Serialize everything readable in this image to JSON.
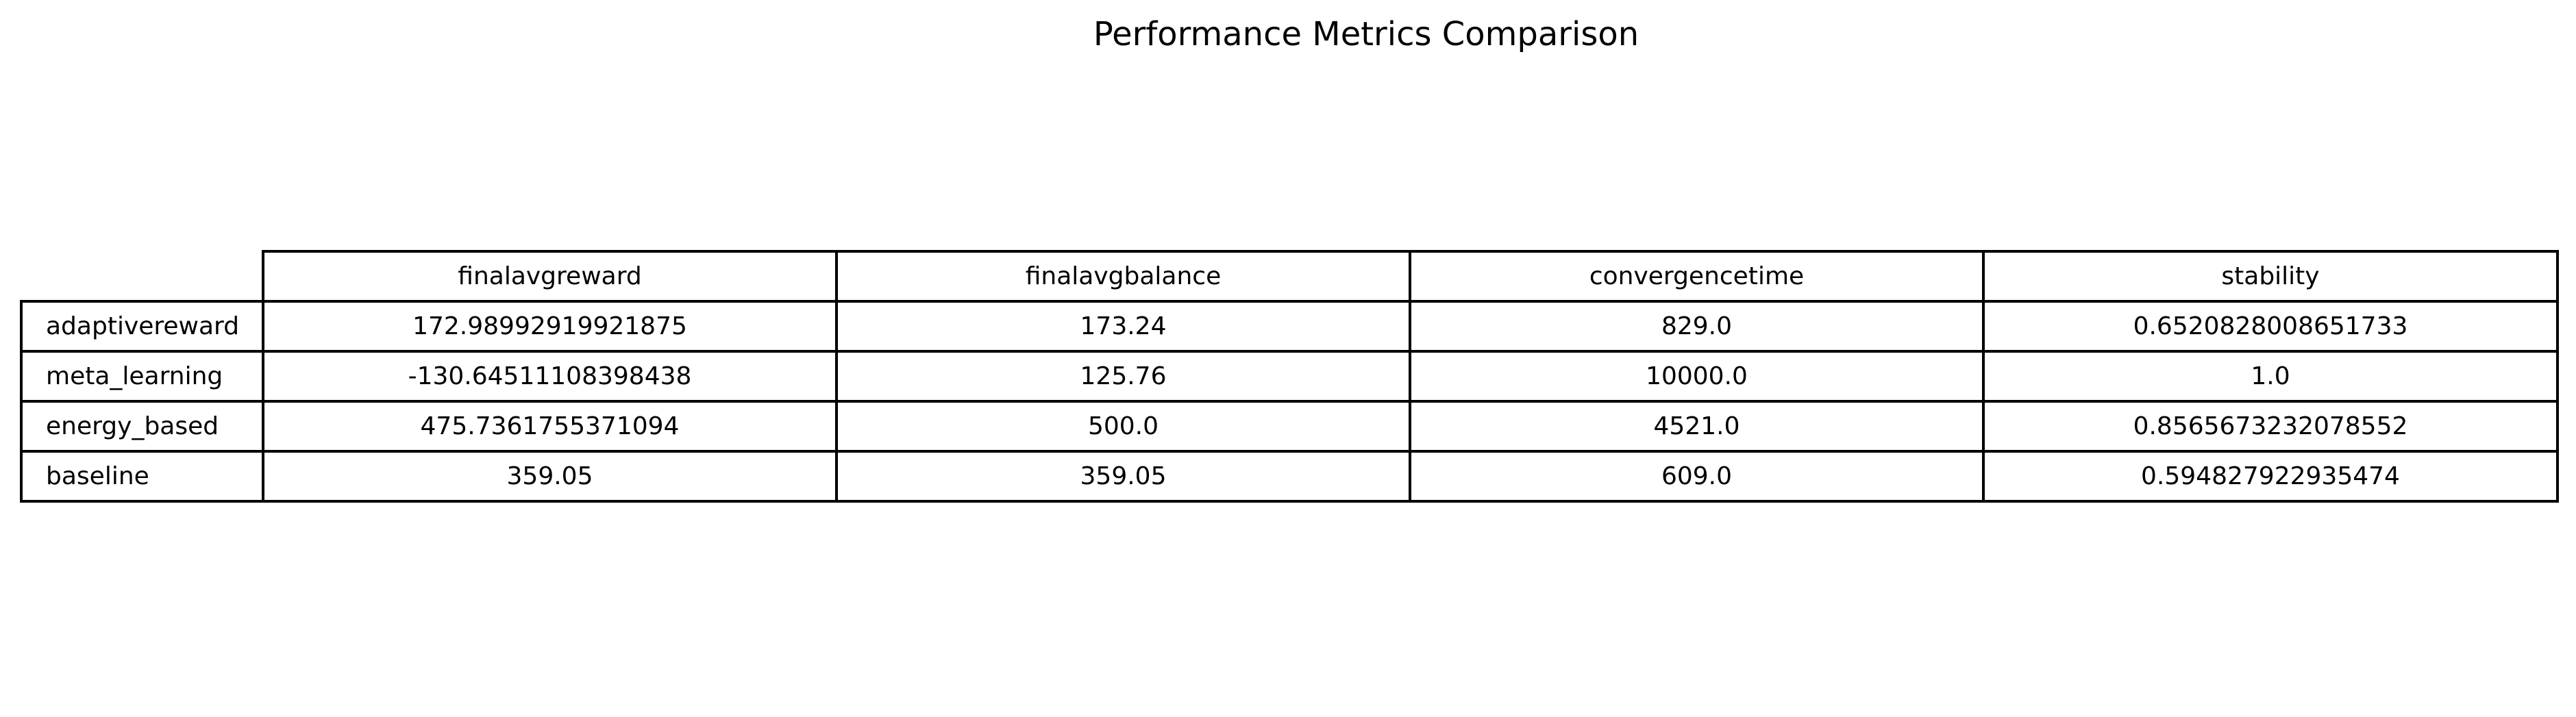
{
  "chart_data": {
    "type": "table",
    "title": "Performance Metrics Comparison",
    "columns": [
      "finalavgreward",
      "finalavgbalance",
      "convergencetime",
      "stability"
    ],
    "rows": [
      {
        "label": "adaptivereward",
        "values": [
          "172.98992919921875",
          "173.24",
          "829.0",
          "0.6520828008651733"
        ]
      },
      {
        "label": "meta_learning",
        "values": [
          "-130.64511108398438",
          "125.76",
          "10000.0",
          "1.0"
        ]
      },
      {
        "label": "energy_based",
        "values": [
          "475.7361755371094",
          "500.0",
          "4521.0",
          "0.8565673232078552"
        ]
      },
      {
        "label": "baseline",
        "values": [
          "359.05",
          "359.05",
          "609.0",
          "0.594827922935474"
        ]
      }
    ]
  }
}
